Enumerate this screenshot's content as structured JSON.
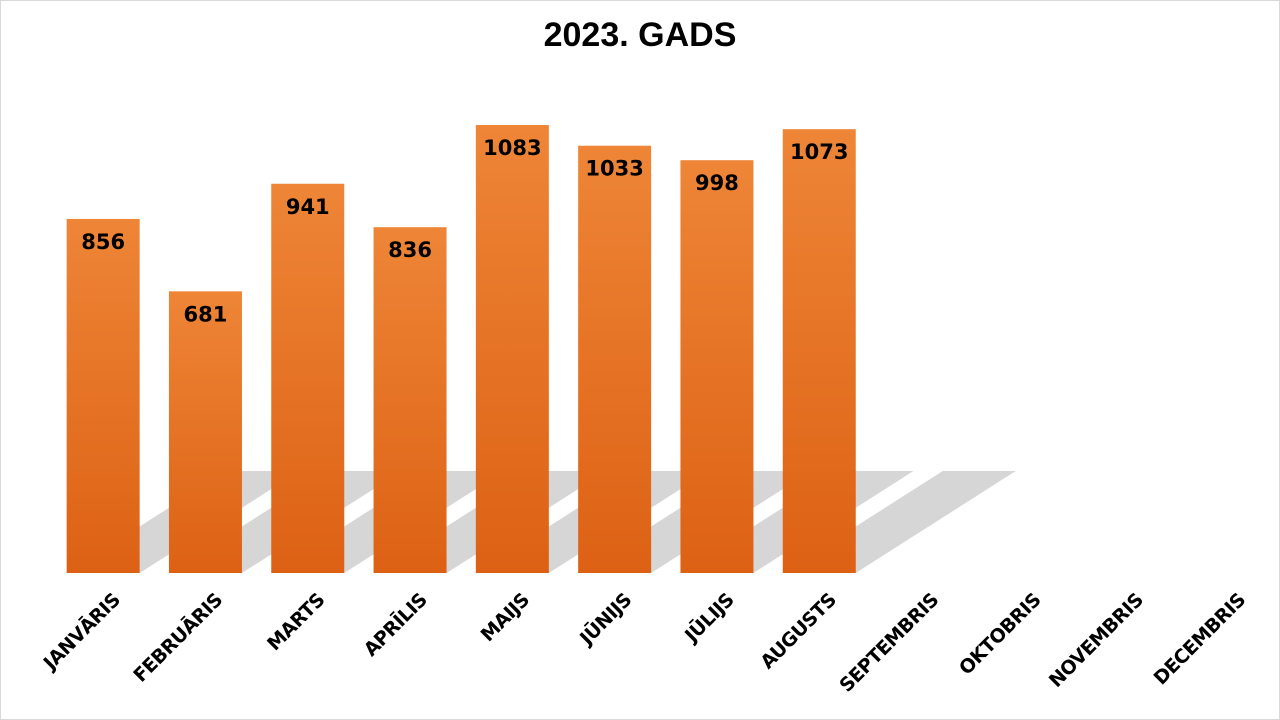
{
  "chart_data": {
    "type": "bar",
    "title": "2023. GADS",
    "categories": [
      "JANVĀRIS",
      "FEBRUĀRIS",
      "MARTS",
      "APRĪLIS",
      "MAIJS",
      "JŪNIJS",
      "JŪLIJS",
      "AUGUSTS",
      "SEPTEMBRIS",
      "OKTOBRIS",
      "NOVEMBRIS",
      "DECEMBRIS"
    ],
    "values": [
      856,
      681,
      941,
      836,
      1083,
      1033,
      998,
      1073,
      null,
      null,
      null,
      null
    ],
    "ylim": [
      0,
      1100
    ],
    "xlabel": "",
    "ylabel": "",
    "grid": false,
    "legend": "none",
    "colors": {
      "bar_top": "#ee8537",
      "bar_bottom": "#dd6114",
      "shadow": "#cfcfcf"
    }
  }
}
